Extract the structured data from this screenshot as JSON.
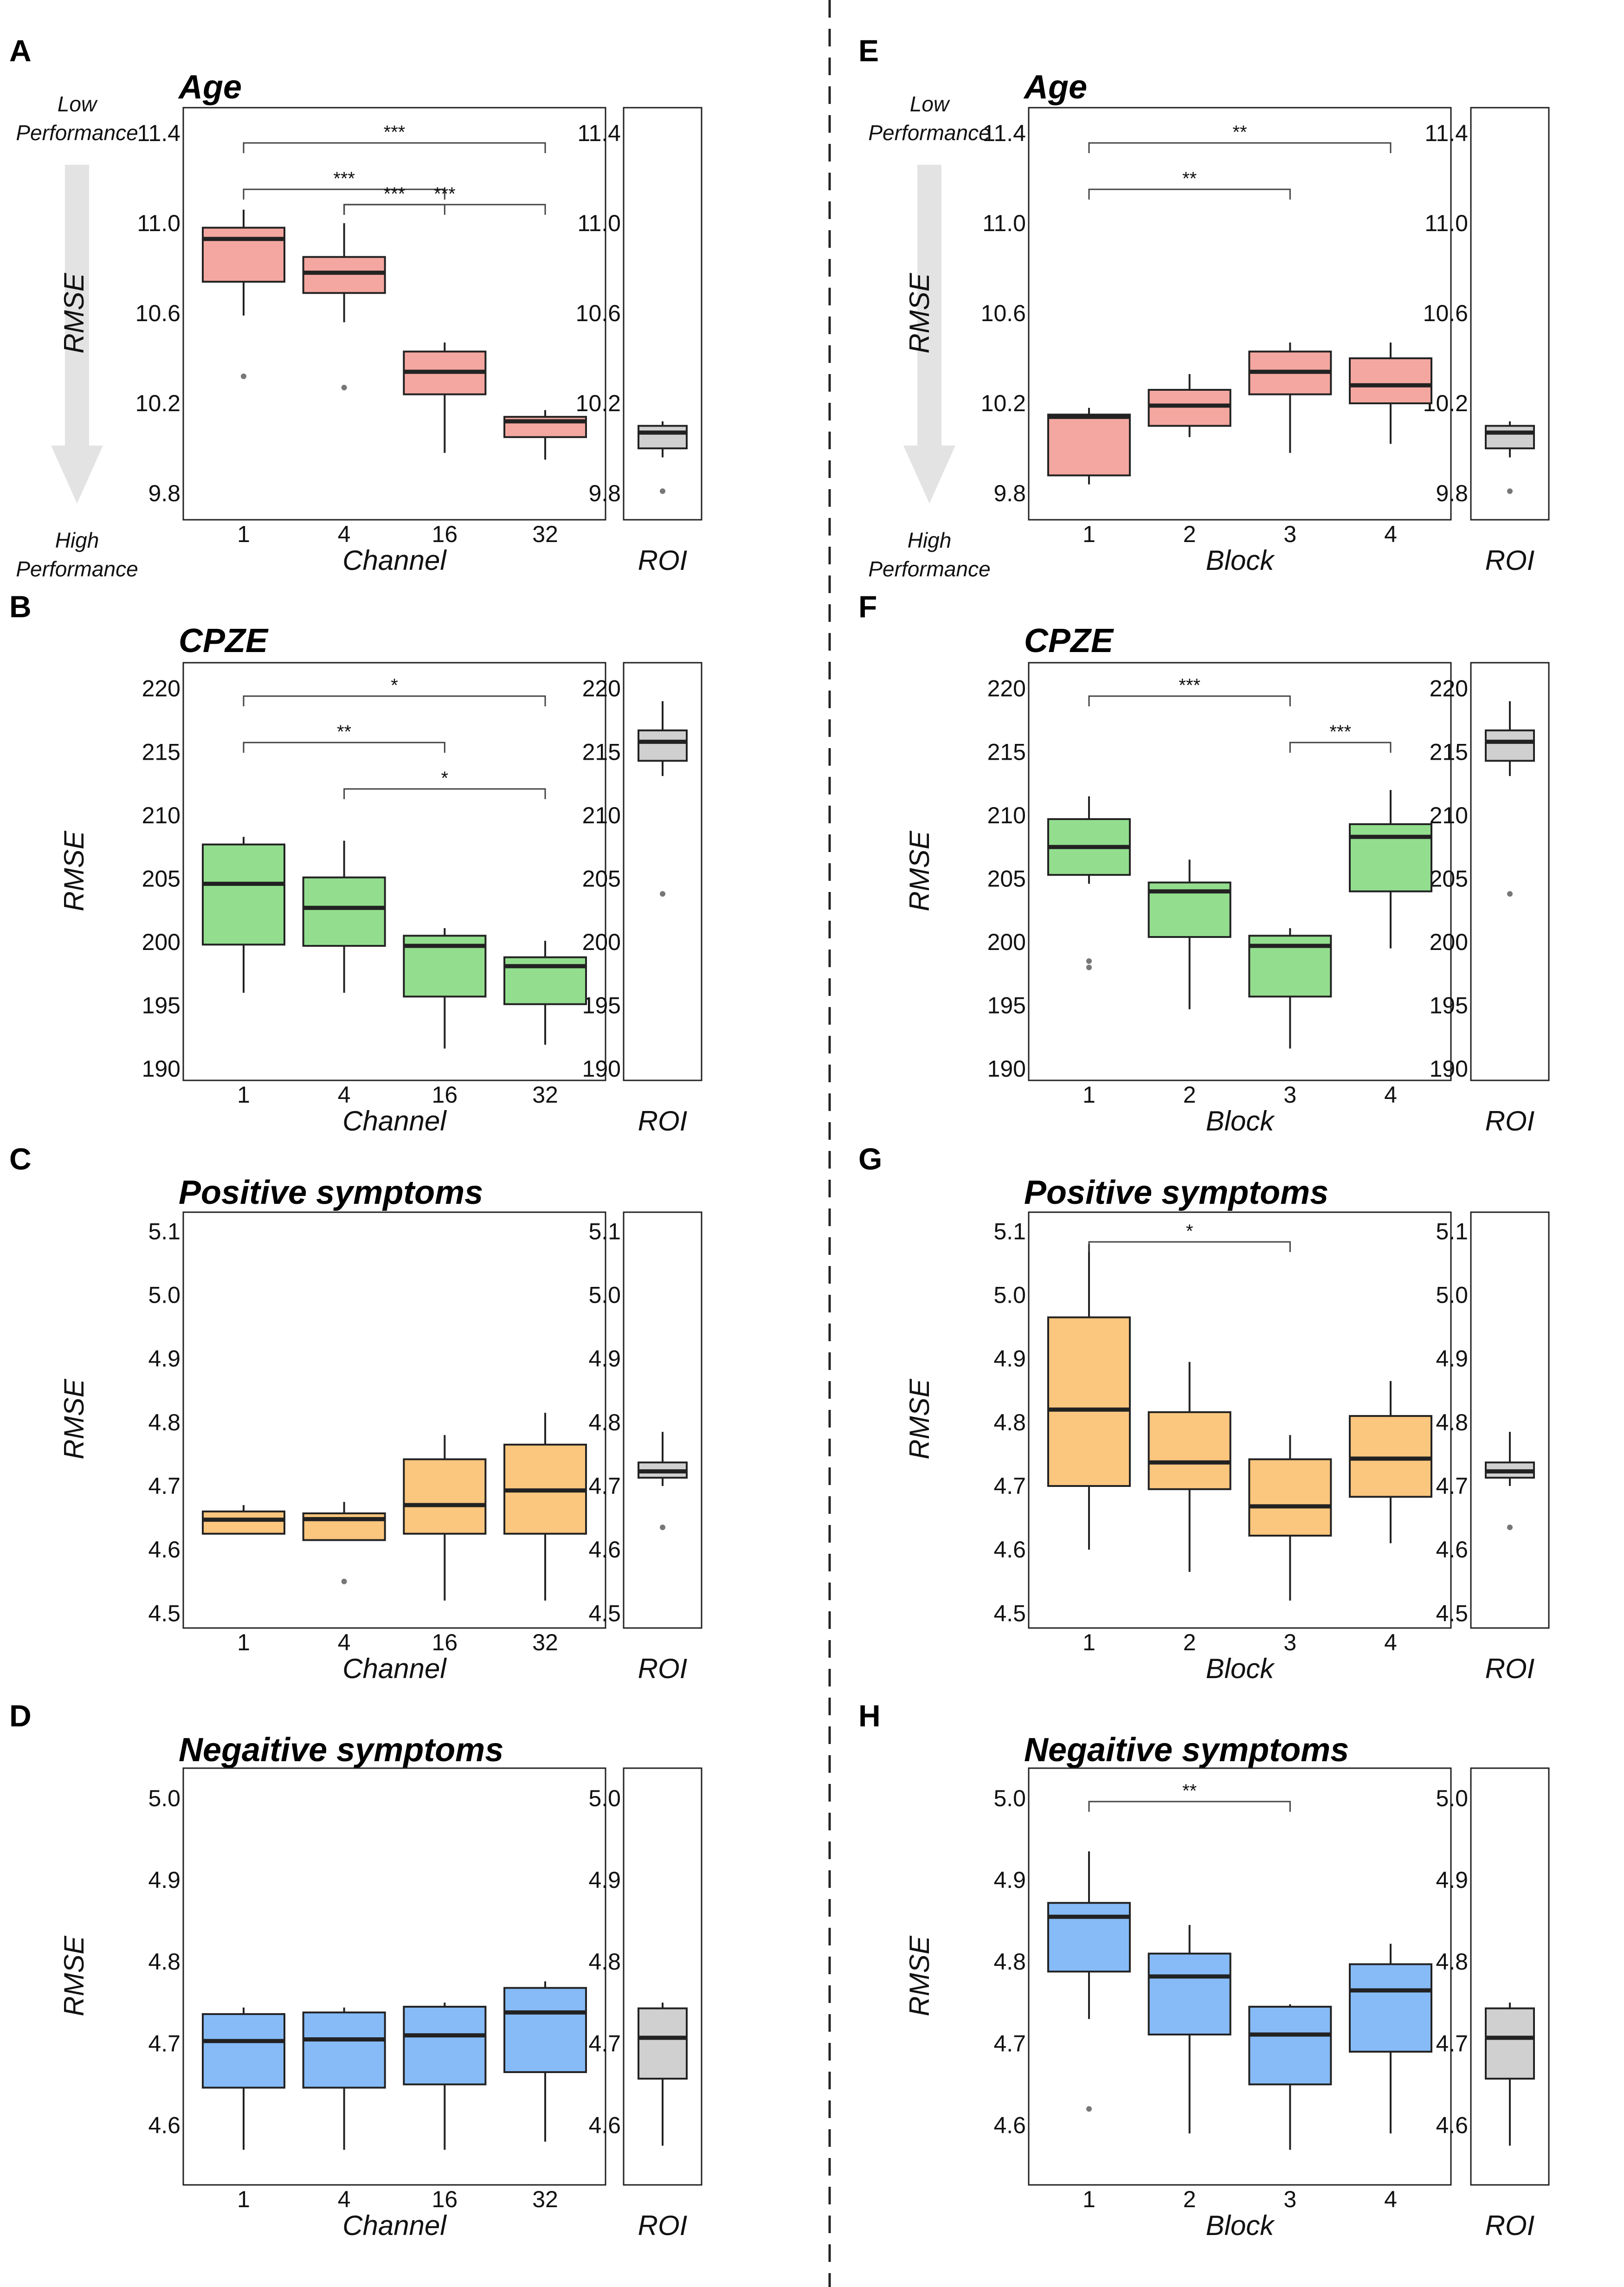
{
  "left_column_axis": "Channel",
  "right_column_axis": "Block",
  "performance_arrow": {
    "top_line1": "Low",
    "top_line2": "Performance",
    "bottom_line1": "High",
    "bottom_line2": "Performance"
  },
  "colors": {
    "Age": {
      "fill": "#f4a7a0",
      "stroke": "#222222"
    },
    "CPZE": {
      "fill": "#93de8e",
      "stroke": "#222222"
    },
    "Positive symptoms": {
      "fill": "#fbc67e",
      "stroke": "#222222"
    },
    "Negaitive symptoms": {
      "fill": "#86bbf7",
      "stroke": "#222222"
    },
    "roi": "#d0d0d0",
    "arrow": "#e3e3e3"
  },
  "chart_data": [
    {
      "panel": "A",
      "type": "boxplot",
      "title": "Age",
      "xlabel": "Channel",
      "ylabel": "RMSE",
      "ylim": [
        9.72,
        11.48
      ],
      "yticks": [
        "9.8",
        "10.2",
        "10.6",
        "11.0",
        "11.4"
      ],
      "categories": [
        "1",
        "4",
        "16",
        "32"
      ],
      "boxes": [
        {
          "min": 10.59,
          "q1": 10.74,
          "median": 10.93,
          "q3": 10.98,
          "max": 11.06,
          "outliers": [
            10.32
          ]
        },
        {
          "min": 10.56,
          "q1": 10.69,
          "median": 10.78,
          "q3": 10.85,
          "max": 11.0,
          "outliers": [
            10.27
          ]
        },
        {
          "min": 9.98,
          "q1": 10.24,
          "median": 10.34,
          "q3": 10.43,
          "max": 10.47,
          "outliers": []
        },
        {
          "min": 9.95,
          "q1": 10.05,
          "median": 10.12,
          "q3": 10.14,
          "max": 10.17,
          "outliers": []
        }
      ],
      "significance": [
        {
          "from": "1",
          "to": "32",
          "label": "***"
        },
        {
          "from": "1",
          "to": "16",
          "label": "***"
        },
        {
          "from": "4",
          "to": "32",
          "label": "***"
        },
        {
          "from": "4",
          "to": "16",
          "label": "***"
        }
      ],
      "roi": {
        "xlabel": "ROI",
        "min": 9.96,
        "q1": 10.0,
        "median": 10.07,
        "q3": 10.1,
        "max": 10.12,
        "outliers": [
          9.81
        ]
      }
    },
    {
      "panel": "B",
      "type": "boxplot",
      "title": "CPZE",
      "xlabel": "Channel",
      "ylabel": "RMSE",
      "ylim": [
        189.6,
        221.6
      ],
      "yticks": [
        "190",
        "195",
        "200",
        "205",
        "210",
        "215",
        "220"
      ],
      "categories": [
        "1",
        "4",
        "16",
        "32"
      ],
      "boxes": [
        {
          "min": 196.0,
          "q1": 199.8,
          "median": 204.6,
          "q3": 207.7,
          "max": 208.3,
          "outliers": []
        },
        {
          "min": 196.0,
          "q1": 199.7,
          "median": 202.7,
          "q3": 205.1,
          "max": 208.0,
          "outliers": []
        },
        {
          "min": 191.6,
          "q1": 195.7,
          "median": 199.7,
          "q3": 200.5,
          "max": 201.1,
          "outliers": []
        },
        {
          "min": 191.9,
          "q1": 195.1,
          "median": 198.1,
          "q3": 198.8,
          "max": 200.1,
          "outliers": []
        }
      ],
      "significance": [
        {
          "from": "1",
          "to": "32",
          "label": "*"
        },
        {
          "from": "1",
          "to": "16",
          "label": "**"
        },
        {
          "from": "4",
          "to": "32",
          "label": "*"
        }
      ],
      "roi": {
        "xlabel": "ROI",
        "min": 213.1,
        "q1": 214.3,
        "median": 215.8,
        "q3": 216.7,
        "max": 219.0,
        "outliers": [
          203.8
        ]
      }
    },
    {
      "panel": "C",
      "type": "boxplot",
      "title": "Positive symptoms",
      "xlabel": "Channel",
      "ylabel": "RMSE",
      "ylim": [
        4.49,
        5.12
      ],
      "yticks": [
        "4.5",
        "4.6",
        "4.7",
        "4.8",
        "4.9",
        "5.0",
        "5.1"
      ],
      "categories": [
        "1",
        "4",
        "16",
        "32"
      ],
      "boxes": [
        {
          "min": 4.625,
          "q1": 4.625,
          "median": 4.647,
          "q3": 4.66,
          "max": 4.67,
          "outliers": []
        },
        {
          "min": 4.615,
          "q1": 4.615,
          "median": 4.648,
          "q3": 4.657,
          "max": 4.675,
          "outliers": [
            4.55
          ]
        },
        {
          "min": 4.52,
          "q1": 4.625,
          "median": 4.67,
          "q3": 4.742,
          "max": 4.78,
          "outliers": []
        },
        {
          "min": 4.52,
          "q1": 4.625,
          "median": 4.693,
          "q3": 4.765,
          "max": 4.815,
          "outliers": []
        }
      ],
      "significance": [],
      "roi": {
        "xlabel": "ROI",
        "min": 4.7,
        "q1": 4.713,
        "median": 4.723,
        "q3": 4.737,
        "max": 4.785,
        "outliers": [
          4.635
        ]
      }
    },
    {
      "panel": "D",
      "type": "boxplot",
      "title": "Negaitive symptoms",
      "xlabel": "Channel",
      "ylabel": "RMSE",
      "ylim": [
        4.535,
        5.03
      ],
      "yticks": [
        "4.6",
        "4.7",
        "4.8",
        "4.9",
        "5.0"
      ],
      "categories": [
        "1",
        "4",
        "16",
        "32"
      ],
      "boxes": [
        {
          "min": 4.57,
          "q1": 4.646,
          "median": 4.703,
          "q3": 4.736,
          "max": 4.744,
          "outliers": []
        },
        {
          "min": 4.57,
          "q1": 4.646,
          "median": 4.705,
          "q3": 4.738,
          "max": 4.744,
          "outliers": []
        },
        {
          "min": 4.57,
          "q1": 4.65,
          "median": 4.71,
          "q3": 4.745,
          "max": 4.75,
          "outliers": []
        },
        {
          "min": 4.58,
          "q1": 4.665,
          "median": 4.738,
          "q3": 4.768,
          "max": 4.776,
          "outliers": []
        }
      ],
      "significance": [],
      "roi": {
        "xlabel": "ROI",
        "min": 4.575,
        "q1": 4.657,
        "median": 4.707,
        "q3": 4.743,
        "max": 4.75,
        "outliers": []
      }
    },
    {
      "panel": "E",
      "type": "boxplot",
      "title": "Age",
      "xlabel": "Block",
      "ylabel": "RMSE",
      "ylim": [
        9.72,
        11.48
      ],
      "yticks": [
        "9.8",
        "10.2",
        "10.6",
        "11.0",
        "11.4"
      ],
      "categories": [
        "1",
        "2",
        "3",
        "4"
      ],
      "boxes": [
        {
          "min": 9.84,
          "q1": 9.88,
          "median": 10.14,
          "q3": 10.15,
          "max": 10.18,
          "outliers": []
        },
        {
          "min": 10.05,
          "q1": 10.1,
          "median": 10.19,
          "q3": 10.26,
          "max": 10.33,
          "outliers": []
        },
        {
          "min": 9.98,
          "q1": 10.24,
          "median": 10.34,
          "q3": 10.43,
          "max": 10.47,
          "outliers": []
        },
        {
          "min": 10.02,
          "q1": 10.2,
          "median": 10.28,
          "q3": 10.4,
          "max": 10.47,
          "outliers": []
        }
      ],
      "significance": [
        {
          "from": "1",
          "to": "4",
          "label": "**"
        },
        {
          "from": "1",
          "to": "3",
          "label": "**"
        }
      ],
      "roi": {
        "xlabel": "ROI",
        "min": 9.96,
        "q1": 10.0,
        "median": 10.07,
        "q3": 10.1,
        "max": 10.12,
        "outliers": [
          9.81
        ]
      }
    },
    {
      "panel": "F",
      "type": "boxplot",
      "title": "CPZE",
      "xlabel": "Block",
      "ylabel": "RMSE",
      "ylim": [
        189.6,
        221.6
      ],
      "yticks": [
        "190",
        "195",
        "200",
        "205",
        "210",
        "215",
        "220"
      ],
      "categories": [
        "1",
        "2",
        "3",
        "4"
      ],
      "boxes": [
        {
          "min": 204.6,
          "q1": 205.3,
          "median": 207.5,
          "q3": 209.7,
          "max": 211.5,
          "outliers": [
            198.5,
            198.0
          ]
        },
        {
          "min": 194.7,
          "q1": 200.4,
          "median": 204.0,
          "q3": 204.7,
          "max": 206.5,
          "outliers": []
        },
        {
          "min": 191.6,
          "q1": 195.7,
          "median": 199.7,
          "q3": 200.5,
          "max": 201.1,
          "outliers": []
        },
        {
          "min": 199.5,
          "q1": 204.0,
          "median": 208.3,
          "q3": 209.3,
          "max": 212.0,
          "outliers": []
        }
      ],
      "significance": [
        {
          "from": "1",
          "to": "3",
          "label": "***"
        },
        {
          "from": "3",
          "to": "4",
          "label": "***"
        }
      ],
      "roi": {
        "xlabel": "ROI",
        "min": 213.1,
        "q1": 214.3,
        "median": 215.8,
        "q3": 216.7,
        "max": 219.0,
        "outliers": [
          203.8
        ]
      }
    },
    {
      "panel": "G",
      "type": "boxplot",
      "title": "Positive symptoms",
      "xlabel": "Block",
      "ylabel": "RMSE",
      "ylim": [
        4.49,
        5.12
      ],
      "yticks": [
        "4.5",
        "4.6",
        "4.7",
        "4.8",
        "4.9",
        "5.0",
        "5.1"
      ],
      "categories": [
        "1",
        "2",
        "3",
        "4"
      ],
      "boxes": [
        {
          "min": 4.6,
          "q1": 4.7,
          "median": 4.82,
          "q3": 4.965,
          "max": 5.08,
          "outliers": []
        },
        {
          "min": 4.565,
          "q1": 4.695,
          "median": 4.737,
          "q3": 4.816,
          "max": 4.895,
          "outliers": []
        },
        {
          "min": 4.52,
          "q1": 4.622,
          "median": 4.668,
          "q3": 4.742,
          "max": 4.78,
          "outliers": []
        },
        {
          "min": 4.61,
          "q1": 4.683,
          "median": 4.743,
          "q3": 4.81,
          "max": 4.865,
          "outliers": []
        }
      ],
      "significance": [
        {
          "from": "1",
          "to": "3",
          "label": "*"
        }
      ],
      "roi": {
        "xlabel": "ROI",
        "min": 4.7,
        "q1": 4.713,
        "median": 4.723,
        "q3": 4.737,
        "max": 4.785,
        "outliers": [
          4.635
        ]
      }
    },
    {
      "panel": "H",
      "type": "boxplot",
      "title": "Negaitive symptoms",
      "xlabel": "Block",
      "ylabel": "RMSE",
      "ylim": [
        4.535,
        5.03
      ],
      "yticks": [
        "4.6",
        "4.7",
        "4.8",
        "4.9",
        "5.0"
      ],
      "categories": [
        "1",
        "2",
        "3",
        "4"
      ],
      "boxes": [
        {
          "min": 4.73,
          "q1": 4.788,
          "median": 4.855,
          "q3": 4.872,
          "max": 4.935,
          "outliers": [
            4.62
          ]
        },
        {
          "min": 4.59,
          "q1": 4.711,
          "median": 4.782,
          "q3": 4.81,
          "max": 4.845,
          "outliers": []
        },
        {
          "min": 4.57,
          "q1": 4.65,
          "median": 4.711,
          "q3": 4.745,
          "max": 4.748,
          "outliers": []
        },
        {
          "min": 4.59,
          "q1": 4.69,
          "median": 4.765,
          "q3": 4.797,
          "max": 4.822,
          "outliers": []
        }
      ],
      "significance": [
        {
          "from": "1",
          "to": "3",
          "label": "**"
        }
      ],
      "roi": {
        "xlabel": "ROI",
        "min": 4.575,
        "q1": 4.657,
        "median": 4.707,
        "q3": 4.743,
        "max": 4.75,
        "outliers": []
      }
    }
  ]
}
